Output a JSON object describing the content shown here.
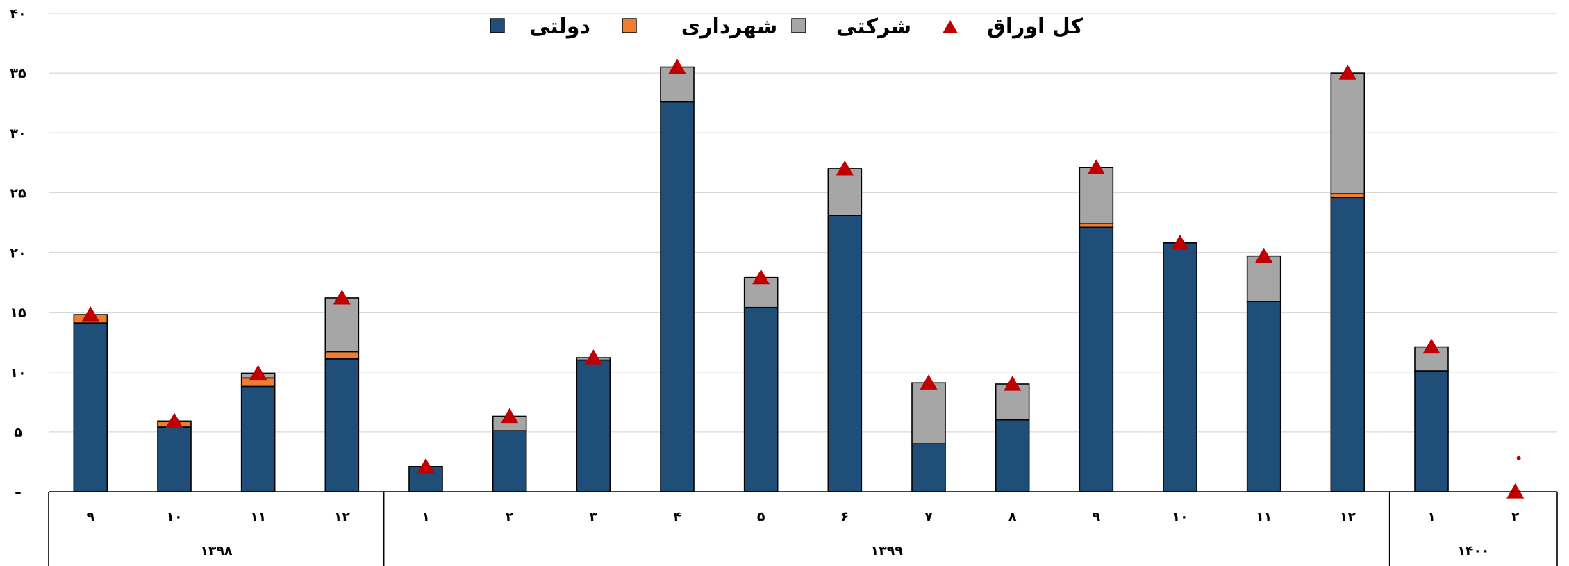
{
  "chart_data": {
    "type": "bar",
    "stacked": true,
    "y_ticks": [
      "۰",
      "۵",
      "۱۰",
      "۱۵",
      "۲۰",
      "۲۵",
      "۳۰",
      "۳۵",
      "۴۰"
    ],
    "ylim": [
      0,
      40
    ],
    "grid": true,
    "legend_position": "top",
    "categories": [
      "۹",
      "۱۰",
      "۱۱",
      "۱۲",
      "۱",
      "۲",
      "۳",
      "۴",
      "۵",
      "۶",
      "۷",
      "۸",
      "۹",
      "۱۰",
      "۱۱",
      "۱۲",
      "۱",
      "۲"
    ],
    "groups": [
      {
        "label": "۱۳۹۸",
        "count": 4
      },
      {
        "label": "۱۳۹۹",
        "count": 12
      },
      {
        "label": "۱۴۰۰",
        "count": 2
      }
    ],
    "series": [
      {
        "name": "دولتی",
        "color": "#1f4e79",
        "values": [
          14.1,
          5.4,
          8.8,
          11.1,
          2.1,
          5.1,
          11.0,
          32.6,
          15.4,
          23.1,
          4.0,
          6.0,
          22.1,
          20.8,
          15.9,
          24.6,
          10.1,
          0
        ]
      },
      {
        "name": "شهرداری",
        "color": "#ed7d31",
        "values": [
          0.7,
          0.5,
          0.7,
          0.6,
          0,
          0,
          0,
          0,
          0,
          0,
          0,
          0,
          0.3,
          0,
          0,
          0.3,
          0,
          0
        ]
      },
      {
        "name": "شرکتی",
        "color": "#a6a6a6",
        "values": [
          0,
          0,
          0.4,
          4.5,
          0,
          1.2,
          0.2,
          2.9,
          2.5,
          3.9,
          5.1,
          3.0,
          4.7,
          0,
          3.8,
          10.1,
          2.0,
          0
        ]
      }
    ],
    "totals": {
      "name": "کل اوراق",
      "color": "#c00000",
      "values": [
        14.8,
        5.9,
        9.9,
        16.2,
        2.1,
        6.3,
        11.2,
        35.5,
        17.9,
        27.0,
        9.1,
        9.0,
        27.1,
        20.8,
        19.7,
        35.0,
        12.1,
        0.0
      ]
    },
    "note_marker": {
      "category_index": 17,
      "value": 2.8,
      "color": "#c00000"
    }
  }
}
